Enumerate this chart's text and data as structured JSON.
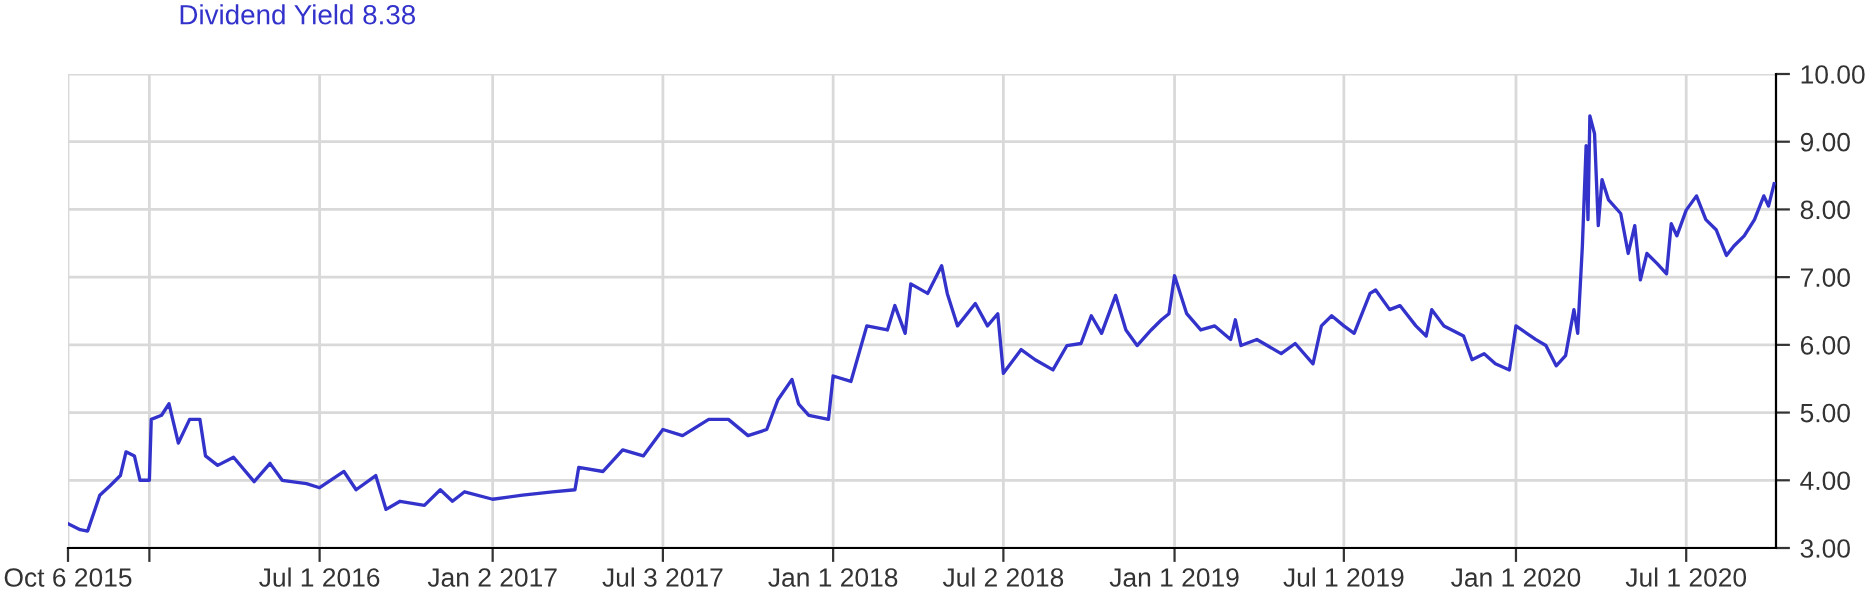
{
  "chart_data": {
    "type": "line",
    "legend": "top left",
    "grid": true,
    "marker": "none",
    "line_style": "solid",
    "xlim": [
      "2015-10-06",
      "2020-10-05"
    ],
    "xticks": [
      {
        "value": "2015-10-06",
        "label": "Oct 6 2015"
      },
      {
        "value": "2016-01-01",
        "label": null
      },
      {
        "value": "2016-07-01",
        "label": "Jul 1 2016"
      },
      {
        "value": "2017-01-02",
        "label": "Jan 2 2017"
      },
      {
        "value": "2017-07-03",
        "label": "Jul 3 2017"
      },
      {
        "value": "2018-01-01",
        "label": "Jan 1 2018"
      },
      {
        "value": "2018-07-02",
        "label": "Jul 2 2018"
      },
      {
        "value": "2019-01-01",
        "label": "Jan 1 2019"
      },
      {
        "value": "2019-07-01",
        "label": "Jul 1 2019"
      },
      {
        "value": "2020-01-01",
        "label": "Jan 1 2020"
      },
      {
        "value": "2020-07-01",
        "label": "Jul 1 2020"
      }
    ],
    "ylim": [
      3,
      10
    ],
    "yticks": [
      {
        "value": 3,
        "label": "3.00"
      },
      {
        "value": 4,
        "label": "4.00"
      },
      {
        "value": 5,
        "label": "5.00"
      },
      {
        "value": 6,
        "label": "6.00"
      },
      {
        "value": 7,
        "label": "7.00"
      },
      {
        "value": 8,
        "label": "8.00"
      },
      {
        "value": 9,
        "label": "9.00"
      },
      {
        "value": 10,
        "label": "10.00"
      }
    ],
    "series": [
      {
        "name": "Dividend Yield 8.38",
        "color": "#3333cc",
        "x": [
          "2015-10-06",
          "2015-10-19",
          "2015-10-27",
          "2015-11-09",
          "2015-11-20",
          "2015-12-01",
          "2015-12-07",
          "2015-12-16",
          "2015-12-22",
          "2016-01-01",
          "2016-01-03",
          "2016-01-14",
          "2016-01-22",
          "2016-02-01",
          "2016-02-13",
          "2016-02-24",
          "2016-03-01",
          "2016-03-14",
          "2016-03-31",
          "2016-04-22",
          "2016-05-09",
          "2016-05-22",
          "2016-06-17",
          "2016-07-01",
          "2016-07-27",
          "2016-08-09",
          "2016-08-30",
          "2016-09-10",
          "2016-09-25",
          "2016-10-21",
          "2016-11-07",
          "2016-11-20",
          "2016-12-03",
          "2017-01-02",
          "2017-02-03",
          "2017-03-07",
          "2017-03-31",
          "2017-04-04",
          "2017-04-30",
          "2017-05-21",
          "2017-06-12",
          "2017-07-03",
          "2017-07-24",
          "2017-08-21",
          "2017-09-11",
          "2017-10-02",
          "2017-10-22",
          "2017-11-03",
          "2017-11-18",
          "2017-11-25",
          "2017-12-06",
          "2017-12-27",
          "2018-01-01",
          "2018-01-20",
          "2018-02-06",
          "2018-02-28",
          "2018-03-08",
          "2018-03-19",
          "2018-03-25",
          "2018-04-12",
          "2018-04-27",
          "2018-05-03",
          "2018-05-14",
          "2018-06-02",
          "2018-06-15",
          "2018-06-26",
          "2018-07-02",
          "2018-07-21",
          "2018-08-05",
          "2018-08-24",
          "2018-09-08",
          "2018-09-23",
          "2018-10-04",
          "2018-10-15",
          "2018-10-30",
          "2018-11-10",
          "2018-11-22",
          "2018-12-07",
          "2018-12-18",
          "2018-12-26",
          "2019-01-01",
          "2019-01-14",
          "2019-01-29",
          "2019-02-13",
          "2019-03-02",
          "2019-03-07",
          "2019-03-13",
          "2019-03-30",
          "2019-04-25",
          "2019-05-10",
          "2019-05-29",
          "2019-06-07",
          "2019-06-18",
          "2019-07-01",
          "2019-07-12",
          "2019-07-29",
          "2019-08-04",
          "2019-08-19",
          "2019-08-30",
          "2019-09-16",
          "2019-09-27",
          "2019-10-03",
          "2019-10-16",
          "2019-11-06",
          "2019-11-15",
          "2019-11-28",
          "2019-12-10",
          "2019-12-25",
          "2020-01-01",
          "2020-01-22",
          "2020-02-02",
          "2020-02-13",
          "2020-02-23",
          "2020-03-03",
          "2020-03-07",
          "2020-03-12",
          "2020-03-16",
          "2020-03-18",
          "2020-03-20",
          "2020-03-25",
          "2020-03-29",
          "2020-04-02",
          "2020-04-09",
          "2020-04-22",
          "2020-04-30",
          "2020-05-07",
          "2020-05-13",
          "2020-05-20",
          "2020-05-31",
          "2020-06-10",
          "2020-06-15",
          "2020-06-21",
          "2020-07-01",
          "2020-07-12",
          "2020-07-22",
          "2020-08-02",
          "2020-08-13",
          "2020-08-21",
          "2020-09-01",
          "2020-09-12",
          "2020-09-22",
          "2020-09-27",
          "2020-10-03"
        ],
        "values": [
          3.36,
          3.27,
          3.25,
          3.78,
          3.92,
          4.07,
          4.42,
          4.36,
          4.0,
          4.0,
          4.9,
          4.96,
          5.13,
          4.55,
          4.9,
          4.9,
          4.36,
          4.22,
          4.34,
          3.98,
          4.25,
          4.0,
          3.95,
          3.89,
          4.13,
          3.86,
          4.07,
          3.57,
          3.69,
          3.63,
          3.86,
          3.69,
          3.83,
          3.72,
          3.78,
          3.83,
          3.86,
          4.19,
          4.13,
          4.45,
          4.36,
          4.75,
          4.66,
          4.9,
          4.9,
          4.66,
          4.75,
          5.19,
          5.49,
          5.13,
          4.96,
          4.9,
          5.54,
          5.46,
          6.28,
          6.22,
          6.58,
          6.17,
          6.9,
          6.76,
          7.17,
          6.76,
          6.28,
          6.61,
          6.28,
          6.46,
          5.58,
          5.93,
          5.78,
          5.63,
          5.99,
          6.02,
          6.43,
          6.17,
          6.73,
          6.22,
          5.99,
          6.22,
          6.37,
          6.46,
          7.02,
          6.46,
          6.22,
          6.28,
          6.08,
          6.37,
          5.99,
          6.08,
          5.87,
          6.02,
          5.72,
          6.28,
          6.43,
          6.28,
          6.17,
          6.76,
          6.81,
          6.52,
          6.58,
          6.28,
          6.13,
          6.52,
          6.28,
          6.13,
          5.78,
          5.87,
          5.72,
          5.63,
          6.28,
          6.08,
          5.99,
          5.69,
          5.84,
          6.52,
          6.17,
          7.46,
          8.94,
          7.85,
          9.38,
          9.12,
          7.76,
          8.44,
          8.14,
          7.94,
          7.35,
          7.76,
          6.96,
          7.35,
          7.2,
          7.05,
          7.79,
          7.61,
          7.99,
          8.2,
          7.85,
          7.7,
          7.32,
          7.46,
          7.61,
          7.85,
          8.2,
          8.05,
          8.38
        ]
      }
    ]
  }
}
